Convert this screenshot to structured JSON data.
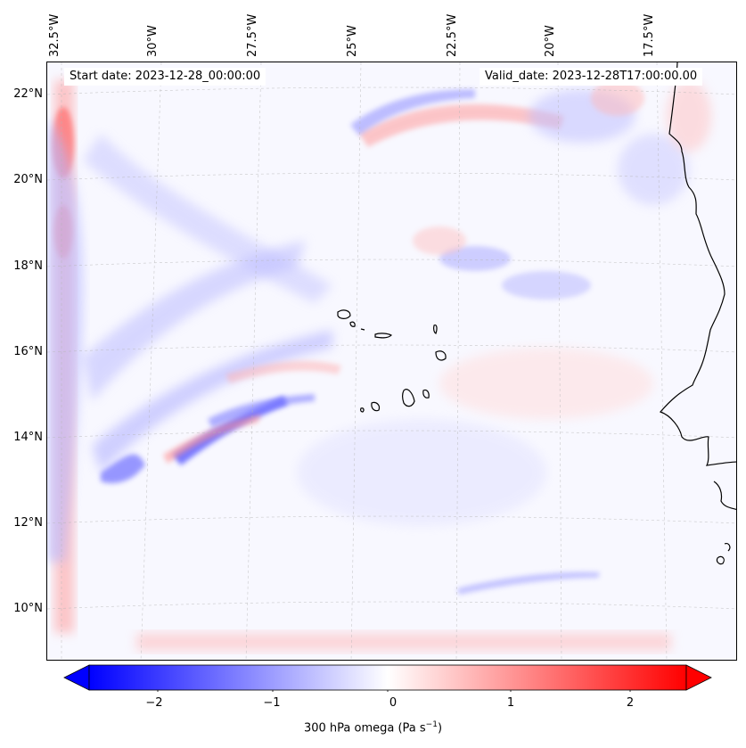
{
  "header": {
    "start_date": "Start date: 2023-12-28_00:00:00",
    "valid_date": "Valid_date: 2023-12-28T17:00:00.00"
  },
  "map": {
    "longitude_labels": [
      "32.5°W",
      "30°W",
      "27.5°W",
      "25°W",
      "22.5°W",
      "20°W",
      "17.5°W"
    ],
    "latitude_labels": [
      "22°N",
      "20°N",
      "18°N",
      "16°N",
      "14°N",
      "12°N",
      "10°N"
    ],
    "features": [
      "Cape Verde Islands",
      "West African coastline"
    ]
  },
  "colorbar": {
    "ticks": [
      "−2",
      "−1",
      "0",
      "1",
      "2"
    ],
    "tick_values": [
      -2,
      -1,
      0,
      1,
      2
    ],
    "range": [
      -2.5,
      2.5
    ],
    "low_color": "#0000ff",
    "mid_color": "#ffffff",
    "high_color": "#ff0000",
    "label_main": "300 hPa omega (Pa s",
    "label_exp": "−1",
    "label_end": ")"
  }
}
